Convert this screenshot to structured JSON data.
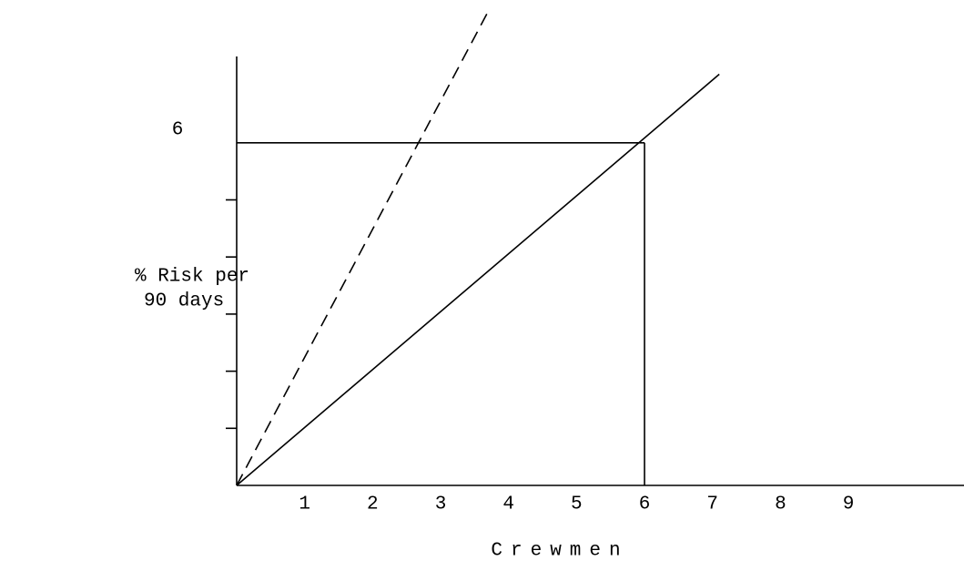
{
  "chart_data": {
    "type": "line",
    "xlabel": "Crewmen",
    "ylabel": [
      "% Risk per",
      "90 days"
    ],
    "xlim": [
      0,
      10.7
    ],
    "ylim": [
      0,
      8.5
    ],
    "xticks": [
      1,
      2,
      3,
      4,
      5,
      6,
      7,
      8,
      9
    ],
    "yticks": [
      6
    ],
    "yminor_ticks": [
      1,
      2,
      3,
      4,
      5
    ],
    "guide": {
      "x": 6,
      "y": 6
    },
    "series": [
      {
        "x": [
          0,
          7.1
        ],
        "values": [
          0,
          7.2
        ],
        "color": "#000000",
        "dash": false
      },
      {
        "x": [
          0,
          3.7
        ],
        "values": [
          0,
          8.3
        ],
        "color": "#000000",
        "dash": true
      }
    ]
  }
}
